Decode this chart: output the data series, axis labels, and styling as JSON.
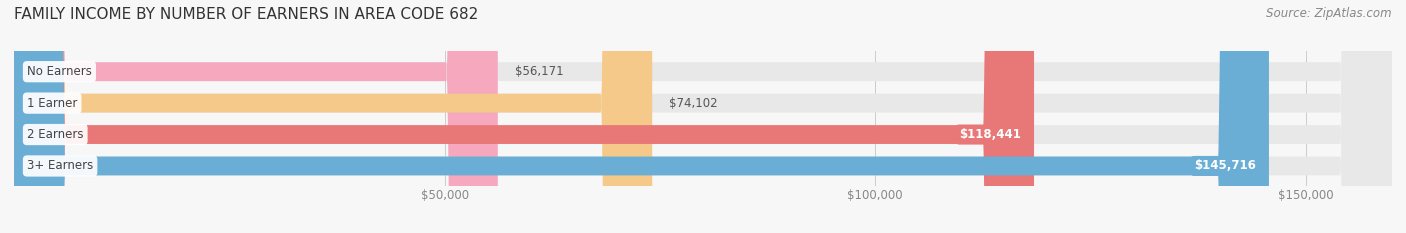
{
  "title": "FAMILY INCOME BY NUMBER OF EARNERS IN AREA CODE 682",
  "source": "Source: ZipAtlas.com",
  "categories": [
    "No Earners",
    "1 Earner",
    "2 Earners",
    "3+ Earners"
  ],
  "values": [
    56171,
    74102,
    118441,
    145716
  ],
  "bar_colors": [
    "#f5a8be",
    "#f5c98a",
    "#e87878",
    "#6aadd5"
  ],
  "value_labels": [
    "$56,171",
    "$74,102",
    "$118,441",
    "$145,716"
  ],
  "value_inside": [
    false,
    false,
    true,
    true
  ],
  "xmin": 0,
  "xmax": 160000,
  "xticks": [
    50000,
    100000,
    150000
  ],
  "xticklabels": [
    "$50,000",
    "$100,000",
    "$150,000"
  ],
  "background_color": "#f7f7f7",
  "bar_background_color": "#e8e8e8",
  "title_fontsize": 11,
  "source_fontsize": 8.5,
  "label_fontsize": 8.5,
  "value_fontsize": 8.5
}
